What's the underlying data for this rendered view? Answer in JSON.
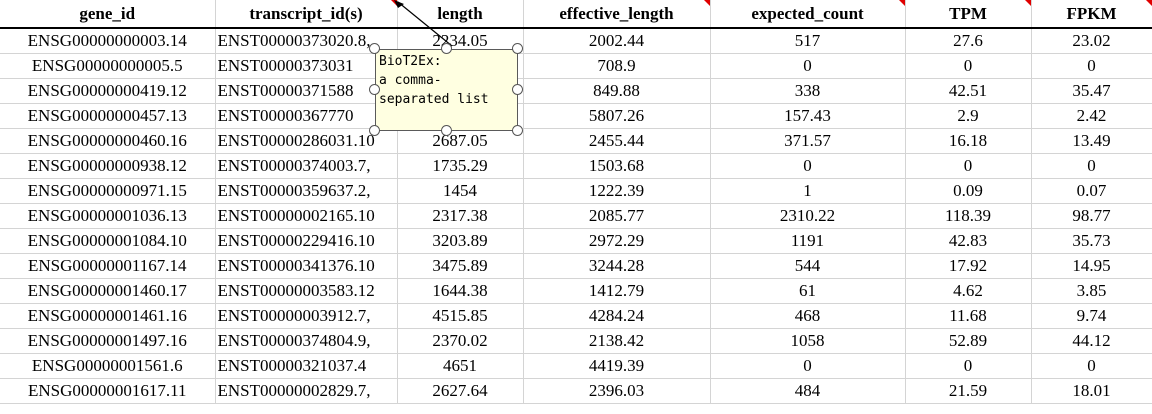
{
  "columns": [
    "gene_id",
    "transcript_id(s)",
    "length",
    "effective_length",
    "expected_count",
    "TPM",
    "FPKM"
  ],
  "rows": [
    [
      "ENSG00000000003.14",
      "ENST00000373020.8,",
      "2234.05",
      "2002.44",
      "517",
      "27.6",
      "23.02"
    ],
    [
      "ENSG00000000005.5",
      "ENST00000373031",
      "",
      "708.9",
      "0",
      "0",
      "0"
    ],
    [
      "ENSG00000000419.12",
      "ENST00000371588",
      "",
      "849.88",
      "338",
      "42.51",
      "35.47"
    ],
    [
      "ENSG00000000457.13",
      "ENST00000367770",
      "",
      "5807.26",
      "157.43",
      "2.9",
      "2.42"
    ],
    [
      "ENSG00000000460.16",
      "ENST00000286031.10",
      "2687.05",
      "2455.44",
      "371.57",
      "16.18",
      "13.49"
    ],
    [
      "ENSG00000000938.12",
      "ENST00000374003.7,",
      "1735.29",
      "1503.68",
      "0",
      "0",
      "0"
    ],
    [
      "ENSG00000000971.15",
      "ENST00000359637.2,",
      "1454",
      "1222.39",
      "1",
      "0.09",
      "0.07"
    ],
    [
      "ENSG00000001036.13",
      "ENST00000002165.10",
      "2317.38",
      "2085.77",
      "2310.22",
      "118.39",
      "98.77"
    ],
    [
      "ENSG00000001084.10",
      "ENST00000229416.10",
      "3203.89",
      "2972.29",
      "1191",
      "42.83",
      "35.73"
    ],
    [
      "ENSG00000001167.14",
      "ENST00000341376.10",
      "3475.89",
      "3244.28",
      "544",
      "17.92",
      "14.95"
    ],
    [
      "ENSG00000001460.17",
      "ENST00000003583.12",
      "1644.38",
      "1412.79",
      "61",
      "4.62",
      "3.85"
    ],
    [
      "ENSG00000001461.16",
      "ENST00000003912.7,",
      "4515.85",
      "4284.24",
      "468",
      "11.68",
      "9.74"
    ],
    [
      "ENSG00000001497.16",
      "ENST00000374804.9,",
      "2370.02",
      "2138.42",
      "1058",
      "52.89",
      "44.12"
    ],
    [
      "ENSG00000001561.6",
      "ENST00000321037.4",
      "4651",
      "4419.39",
      "0",
      "0",
      "0"
    ],
    [
      "ENSG00000001617.11",
      "ENST00000002829.7,",
      "2627.64",
      "2396.03",
      "484",
      "21.59",
      "18.01"
    ]
  ],
  "comment": {
    "text": "BioT2Ex:\na comma-\nseparated list"
  },
  "colors": {
    "comment_bg": "#ffffe1",
    "comment_indicator": "#e00000",
    "gridline": "#d4d4d4"
  }
}
